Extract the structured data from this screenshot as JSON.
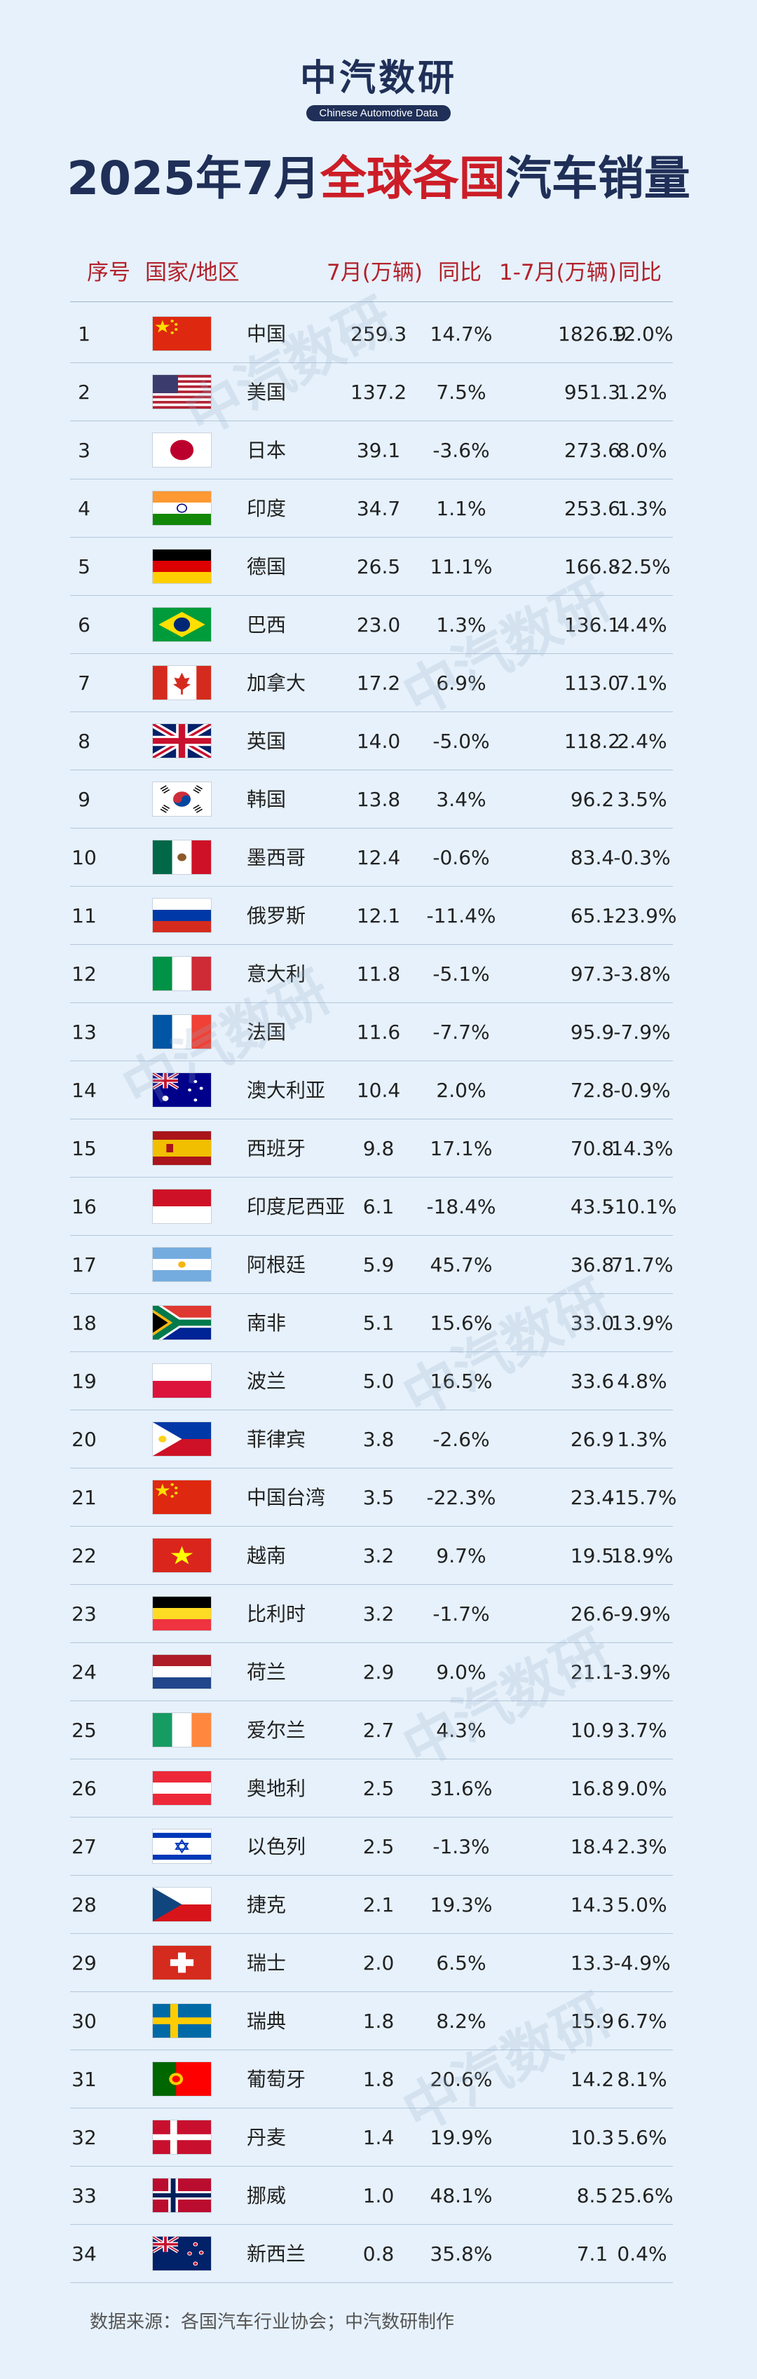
{
  "logo": {
    "main": "中汽数研",
    "sub": "Chinese Automotive Data"
  },
  "title": {
    "part1": "2025年7月",
    "part2": "全球各国",
    "part3": "汽车销量"
  },
  "header": {
    "rank": "序号",
    "country": "国家/地区",
    "jul": "7月(万辆)",
    "yoy": "同比",
    "ytd": "1-7月(万辆)",
    "ytd_yoy": "同比"
  },
  "rows": [
    {
      "rank": "1",
      "name": "中国",
      "flag": "china",
      "jul": "259.3",
      "yoy": "14.7%",
      "ytd": "1826.9",
      "ytd_yoy": "12.0%"
    },
    {
      "rank": "2",
      "name": "美国",
      "flag": "usa",
      "jul": "137.2",
      "yoy": "7.5%",
      "ytd": "951.3",
      "ytd_yoy": "1.2%"
    },
    {
      "rank": "3",
      "name": "日本",
      "flag": "japan",
      "jul": "39.1",
      "yoy": "-3.6%",
      "ytd": "273.6",
      "ytd_yoy": "8.0%"
    },
    {
      "rank": "4",
      "name": "印度",
      "flag": "india",
      "jul": "34.7",
      "yoy": "1.1%",
      "ytd": "253.6",
      "ytd_yoy": "1.3%"
    },
    {
      "rank": "5",
      "name": "德国",
      "flag": "germany",
      "jul": "26.5",
      "yoy": "11.1%",
      "ytd": "166.8",
      "ytd_yoy": "-2.5%"
    },
    {
      "rank": "6",
      "name": "巴西",
      "flag": "brazil",
      "jul": "23.0",
      "yoy": "1.3%",
      "ytd": "136.1",
      "ytd_yoy": "4.4%"
    },
    {
      "rank": "7",
      "name": "加拿大",
      "flag": "canada",
      "jul": "17.2",
      "yoy": "6.9%",
      "ytd": "113.0",
      "ytd_yoy": "7.1%"
    },
    {
      "rank": "8",
      "name": "英国",
      "flag": "uk",
      "jul": "14.0",
      "yoy": "-5.0%",
      "ytd": "118.2",
      "ytd_yoy": "2.4%"
    },
    {
      "rank": "9",
      "name": "韩国",
      "flag": "korea",
      "jul": "13.8",
      "yoy": "3.4%",
      "ytd": "96.2",
      "ytd_yoy": "3.5%"
    },
    {
      "rank": "10",
      "name": "墨西哥",
      "flag": "mexico",
      "jul": "12.4",
      "yoy": "-0.6%",
      "ytd": "83.4",
      "ytd_yoy": "-0.3%"
    },
    {
      "rank": "11",
      "name": "俄罗斯",
      "flag": "russia",
      "jul": "12.1",
      "yoy": "-11.4%",
      "ytd": "65.1",
      "ytd_yoy": "-23.9%"
    },
    {
      "rank": "12",
      "name": "意大利",
      "flag": "italy",
      "jul": "11.8",
      "yoy": "-5.1%",
      "ytd": "97.3",
      "ytd_yoy": "-3.8%"
    },
    {
      "rank": "13",
      "name": "法国",
      "flag": "france",
      "jul": "11.6",
      "yoy": "-7.7%",
      "ytd": "95.9",
      "ytd_yoy": "-7.9%"
    },
    {
      "rank": "14",
      "name": "澳大利亚",
      "flag": "australia",
      "jul": "10.4",
      "yoy": "2.0%",
      "ytd": "72.8",
      "ytd_yoy": "-0.9%"
    },
    {
      "rank": "15",
      "name": "西班牙",
      "flag": "spain",
      "jul": "9.8",
      "yoy": "17.1%",
      "ytd": "70.8",
      "ytd_yoy": "14.3%"
    },
    {
      "rank": "16",
      "name": "印度尼西亚",
      "flag": "indonesia",
      "jul": "6.1",
      "yoy": "-18.4%",
      "ytd": "43.5",
      "ytd_yoy": "-10.1%"
    },
    {
      "rank": "17",
      "name": "阿根廷",
      "flag": "argentina",
      "jul": "5.9",
      "yoy": "45.7%",
      "ytd": "36.8",
      "ytd_yoy": "71.7%"
    },
    {
      "rank": "18",
      "name": "南非",
      "flag": "south-africa",
      "jul": "5.1",
      "yoy": "15.6%",
      "ytd": "33.0",
      "ytd_yoy": "13.9%"
    },
    {
      "rank": "19",
      "name": "波兰",
      "flag": "poland",
      "jul": "5.0",
      "yoy": "16.5%",
      "ytd": "33.6",
      "ytd_yoy": "4.8%"
    },
    {
      "rank": "20",
      "name": "菲律宾",
      "flag": "philippines",
      "jul": "3.8",
      "yoy": "-2.6%",
      "ytd": "26.9",
      "ytd_yoy": "1.3%"
    },
    {
      "rank": "21",
      "name": "中国台湾",
      "flag": "china",
      "jul": "3.5",
      "yoy": "-22.3%",
      "ytd": "23.4",
      "ytd_yoy": "-15.7%"
    },
    {
      "rank": "22",
      "name": "越南",
      "flag": "vietnam",
      "jul": "3.2",
      "yoy": "9.7%",
      "ytd": "19.5",
      "ytd_yoy": "18.9%"
    },
    {
      "rank": "23",
      "name": "比利时",
      "flag": "belgium",
      "jul": "3.2",
      "yoy": "-1.7%",
      "ytd": "26.6",
      "ytd_yoy": "-9.9%"
    },
    {
      "rank": "24",
      "name": "荷兰",
      "flag": "netherlands",
      "jul": "2.9",
      "yoy": "9.0%",
      "ytd": "21.1",
      "ytd_yoy": "-3.9%"
    },
    {
      "rank": "25",
      "name": "爱尔兰",
      "flag": "ireland",
      "jul": "2.7",
      "yoy": "4.3%",
      "ytd": "10.9",
      "ytd_yoy": "3.7%"
    },
    {
      "rank": "26",
      "name": "奥地利",
      "flag": "austria",
      "jul": "2.5",
      "yoy": "31.6%",
      "ytd": "16.8",
      "ytd_yoy": "9.0%"
    },
    {
      "rank": "27",
      "name": "以色列",
      "flag": "israel",
      "jul": "2.5",
      "yoy": "-1.3%",
      "ytd": "18.4",
      "ytd_yoy": "2.3%"
    },
    {
      "rank": "28",
      "name": "捷克",
      "flag": "czech",
      "jul": "2.1",
      "yoy": "19.3%",
      "ytd": "14.3",
      "ytd_yoy": "5.0%"
    },
    {
      "rank": "29",
      "name": "瑞士",
      "flag": "switzerland",
      "jul": "2.0",
      "yoy": "6.5%",
      "ytd": "13.3",
      "ytd_yoy": "-4.9%"
    },
    {
      "rank": "30",
      "name": "瑞典",
      "flag": "sweden",
      "jul": "1.8",
      "yoy": "8.2%",
      "ytd": "15.9",
      "ytd_yoy": "6.7%"
    },
    {
      "rank": "31",
      "name": "葡萄牙",
      "flag": "portugal",
      "jul": "1.8",
      "yoy": "20.6%",
      "ytd": "14.2",
      "ytd_yoy": "8.1%"
    },
    {
      "rank": "32",
      "name": "丹麦",
      "flag": "denmark",
      "jul": "1.4",
      "yoy": "19.9%",
      "ytd": "10.3",
      "ytd_yoy": "5.6%"
    },
    {
      "rank": "33",
      "name": "挪威",
      "flag": "norway",
      "jul": "1.0",
      "yoy": "48.1%",
      "ytd": "8.5",
      "ytd_yoy": "25.6%"
    },
    {
      "rank": "34",
      "name": "新西兰",
      "flag": "new-zealand",
      "jul": "0.8",
      "yoy": "35.8%",
      "ytd": "7.1",
      "ytd_yoy": "0.4%"
    }
  ],
  "source": "数据来源：各国汽车行业协会；中汽数研制作",
  "watermark": "中汽数研",
  "colors": {
    "background": "#e6f1fb",
    "title_navy": "#1f2f57",
    "accent_red": "#cc1d27",
    "header_red": "#b3212b"
  }
}
